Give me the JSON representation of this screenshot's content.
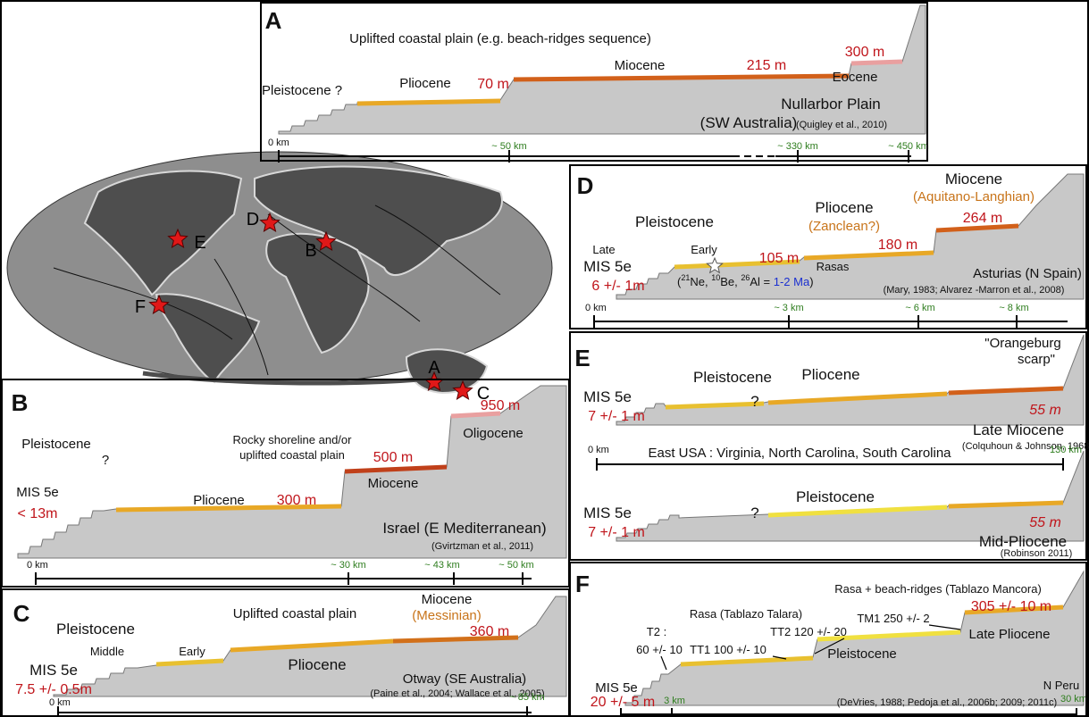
{
  "panels": [
    {
      "letter": "A",
      "labels": [
        "Uplifted coastal plain (e.g. beach-ridges sequence)",
        "Pleistocene ?",
        "Pliocene",
        "70 m",
        "Miocene",
        "215 m",
        "300 m",
        "Eocene",
        "Nullarbor Plain",
        "(SW Australia)",
        "(Quigley et al., 2010)"
      ],
      "scale": [
        "0 km",
        "~ 50 km",
        "~ 330 km",
        "~ 450 km"
      ]
    },
    {
      "letter": "B",
      "labels": [
        "950 m",
        "Oligocene",
        "Rocky shoreline and/or",
        "uplifted coastal plain",
        "500 m",
        "Miocene",
        "Pleistocene",
        "?",
        "MIS 5e",
        "< 13m",
        "Pliocene",
        "300 m",
        "Israel (E Mediterranean)",
        "(Gvirtzman et al., 2011)"
      ],
      "scale": [
        "0 km",
        "~ 30 km",
        "~ 43 km",
        "~ 50 km"
      ]
    },
    {
      "letter": "C",
      "labels": [
        "Uplifted coastal plain",
        "Miocene",
        "(Messinian)",
        "360 m",
        "Pleistocene",
        "Middle",
        "Early",
        "Pliocene",
        "MIS 5e",
        "7.5 +/- 0.5m",
        "Otway (SE Australia)",
        "(Paine et al., 2004; Wallace et al., 2005)"
      ],
      "scale": [
        "0 km",
        "~ 85 km"
      ]
    },
    {
      "letter": "D",
      "labels": [
        "Miocene",
        "(Aquitano-Langhian)",
        "Pliocene",
        "(Zanclean?)",
        "Pleistocene",
        "264 m",
        "180 m",
        "Late",
        "Early",
        "105 m",
        "Rasas",
        "MIS 5e",
        "6 +/- 1m",
        "Asturias (N Spain)",
        "(Mary, 1983; Alvarez -Marron et al., 2008)"
      ],
      "dating": [
        "(",
        "21",
        "Ne, ",
        "10",
        "Be, ",
        "26",
        "Al = ",
        "1-2 Ma",
        ")"
      ],
      "scale": [
        "0 km",
        "~ 3 km",
        "~ 6 km",
        "~ 8 km"
      ]
    },
    {
      "letter": "E",
      "labels": [
        "\"Orangeburg",
        "scarp\"",
        "Pleistocene",
        "Pliocene",
        "?",
        "MIS 5e",
        "7 +/- 1 m",
        "55 m",
        "Late Miocene",
        "(Colquhoun & Johnson, 1968)",
        "East USA : Virginia, North Carolina, South Carolina",
        "Pleistocene",
        "?",
        "MIS 5e",
        "7 +/- 1 m",
        "55 m",
        "Mid-Pliocene",
        "(Robinson 2011)"
      ],
      "scale": [
        "0 km",
        "130 km"
      ]
    },
    {
      "letter": "F",
      "labels": [
        "Rasa + beach-ridges (Tablazo Mancora)",
        "305 +/- 10 m",
        "TM1 250 +/- 2",
        "Rasa (Tablazo Talara)",
        "TT2 120 +/- 20",
        "T2 :",
        "60 +/- 10",
        "TT1 100 +/- 10",
        "Late Pliocene",
        "Pleistocene",
        "MIS 5e",
        "20 +/- 5 m",
        "N Peru",
        "(DeVries, 1988; Pedoja et al., 2006b; 2009; 2011c)"
      ],
      "scale": [
        "3 km",
        "30 km"
      ]
    }
  ],
  "map": {
    "labels": [
      "D",
      "E",
      "B",
      "F",
      "A",
      "C"
    ]
  }
}
